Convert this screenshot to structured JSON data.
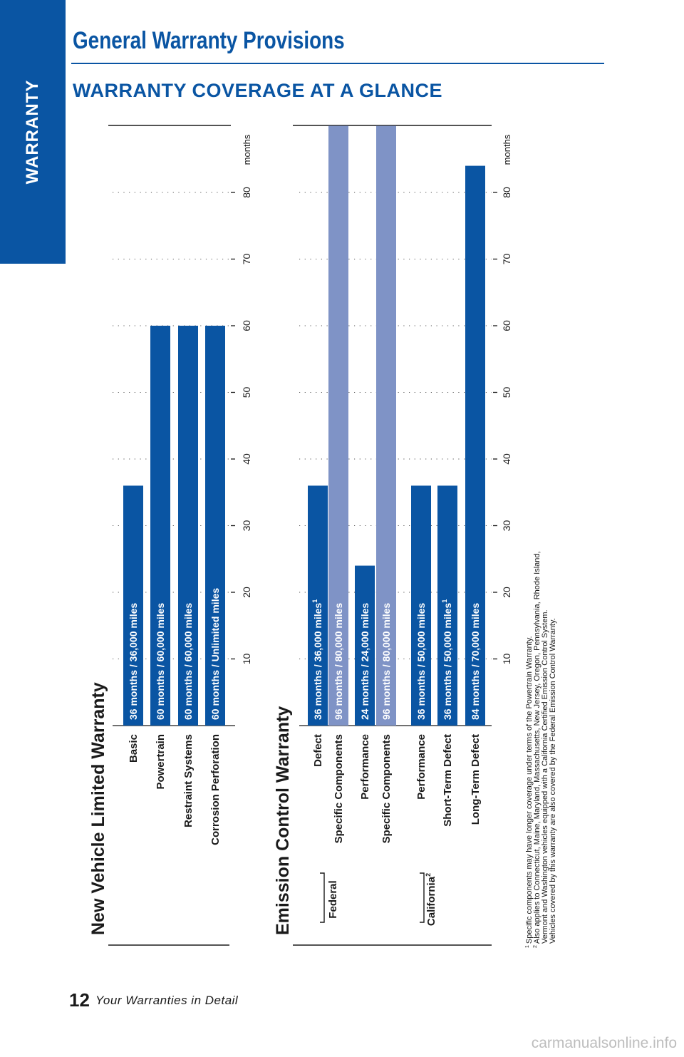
{
  "sidebar": {
    "label": "WARRANTY"
  },
  "header": {
    "title": "General Warranty Provisions",
    "subtitle": "WARRANTY COVERAGE AT A GLANCE"
  },
  "colors": {
    "primary": "#0a55a3",
    "light": "#7f93c6",
    "text": "#1a1a1a"
  },
  "chart_data": [
    {
      "type": "bar",
      "title": "New Vehicle Limited Warranty",
      "unit": "months",
      "ticks": [
        10,
        20,
        30,
        40,
        50,
        60,
        70,
        80
      ],
      "xlim": [
        0,
        90
      ],
      "grid": true,
      "orientation": "rotated",
      "bars": [
        {
          "category": "Basic",
          "value": 36,
          "text": "36 months  /  36,000 miles",
          "sup": "",
          "style": "primary"
        },
        {
          "category": "Powertrain",
          "value": 60,
          "text": "60 months  /  60,000 miles",
          "sup": "",
          "style": "primary"
        },
        {
          "category": "Restraint Systems",
          "value": 60,
          "text": "60 months  /  60,000 miles",
          "sup": "",
          "style": "primary"
        },
        {
          "category": "Corrosion Perforation",
          "value": 60,
          "text": "60 months  /  Unlimited miles",
          "sup": "",
          "style": "primary"
        }
      ]
    },
    {
      "type": "bar",
      "title": "Emission Control Warranty",
      "unit": "months",
      "ticks": [
        10,
        20,
        30,
        40,
        50,
        60,
        70,
        80
      ],
      "xlim": [
        0,
        90
      ],
      "grid": true,
      "orientation": "rotated",
      "groups": [
        {
          "label": "Federal",
          "sup": ""
        },
        {
          "label": "California",
          "sup": "2"
        }
      ],
      "bars": [
        {
          "category": "Defect",
          "group": "Federal",
          "value": 36,
          "text": "36 months  /  36,000 miles",
          "sup": "1",
          "style": "primary"
        },
        {
          "category": "Specific Components",
          "group": "Federal",
          "value": 96,
          "text": "96 months  /  80,000 miles",
          "sup": "",
          "style": "light"
        },
        {
          "category": "Performance",
          "group": "Federal",
          "value": 24,
          "text": "24 months  /  24,000 miles",
          "sup": "",
          "style": "primary"
        },
        {
          "category": "Specific Components",
          "group": "Federal",
          "value": 96,
          "text": "96 months  /  80,000 miles",
          "sup": "",
          "style": "light"
        },
        {
          "category": "Performance",
          "group": "California",
          "value": 36,
          "text": "36 months  /  50,000 miles",
          "sup": "",
          "style": "primary"
        },
        {
          "category": "Short-Term Defect",
          "group": "California",
          "value": 36,
          "text": "36 months  /  50,000 miles",
          "sup": "1",
          "style": "primary"
        },
        {
          "category": "Long-Term Defect",
          "group": "California",
          "value": 84,
          "text": "84 months  /  70,000 miles",
          "sup": "",
          "style": "primary"
        }
      ]
    }
  ],
  "footnotes": [
    {
      "mark": "1",
      "text": "Specific components may have longer coverage under terms of the Powertrain Warranty."
    },
    {
      "mark": "2",
      "text": "Also applies to Connecticut, Maine, Maryland, Massachusetts, New Jersey, Oregon, Pennsylvania, Rhode Island,"
    },
    {
      "mark": "",
      "text": "Vermont and Washington vehicles equipped with a California Certified Emission Control System."
    },
    {
      "mark": "",
      "text": "Vehicles covered by this warranty are also covered by the Federal Emission Control Warranty."
    }
  ],
  "footer": {
    "page_number": "12",
    "text": "Your Warranties in Detail"
  },
  "watermark": "carmanualsonline.info"
}
